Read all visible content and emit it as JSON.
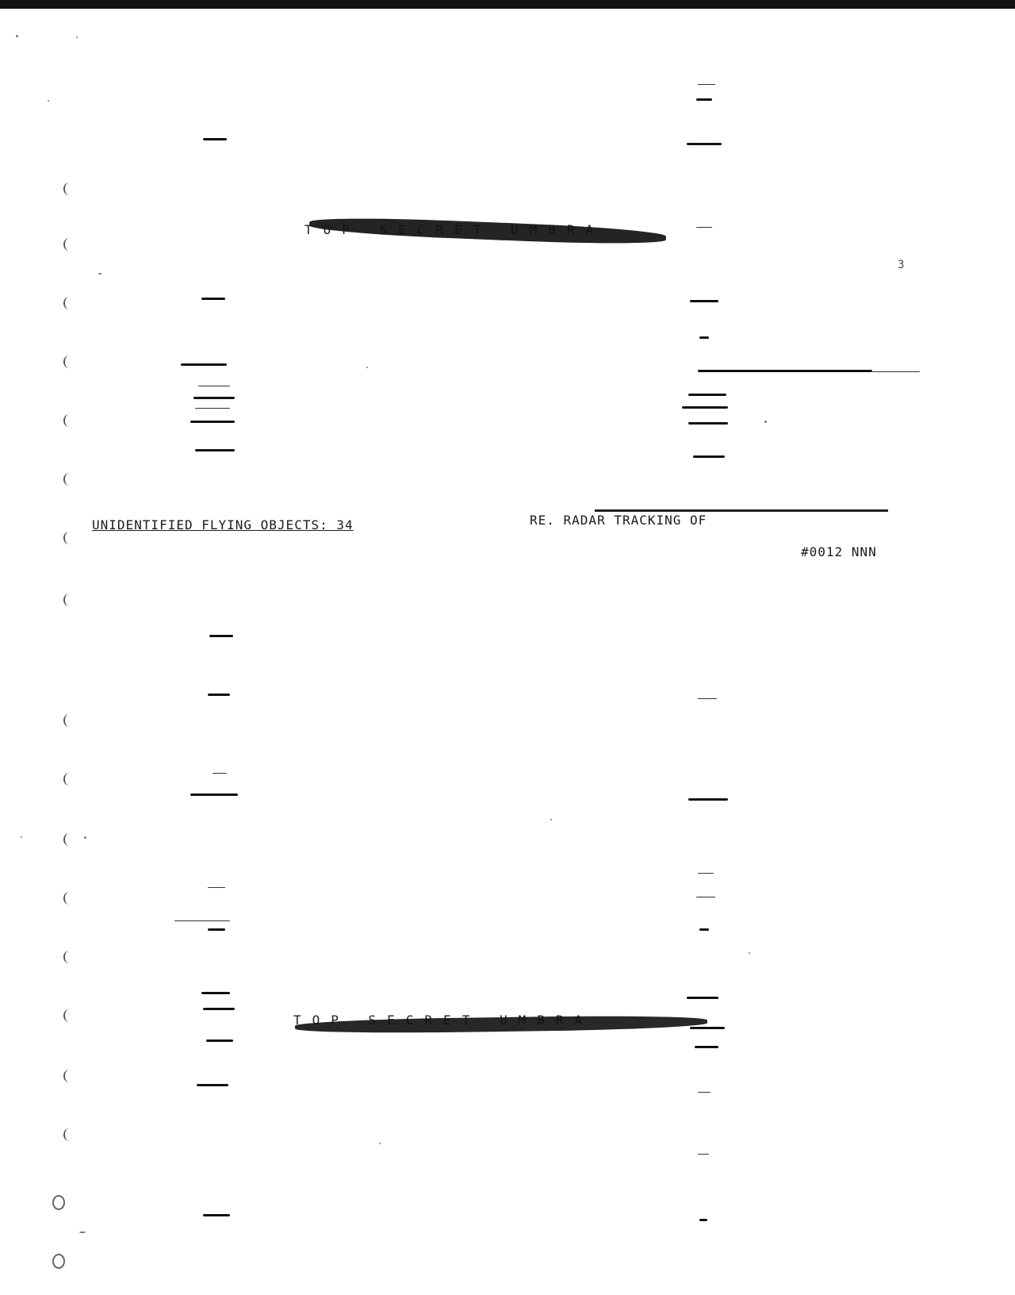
{
  "header": {
    "classification_stamp_top": "TOP SECRET UMBRA",
    "classification_stamp_bottom": "TOP SECRET UMBRA",
    "page_number": "3"
  },
  "body": {
    "subject_left": "UNIDENTIFIED FLYING OBJECTS: 34",
    "subject_right": "RE. RADAR TRACKING OF",
    "reference": "#0012 NNN"
  }
}
